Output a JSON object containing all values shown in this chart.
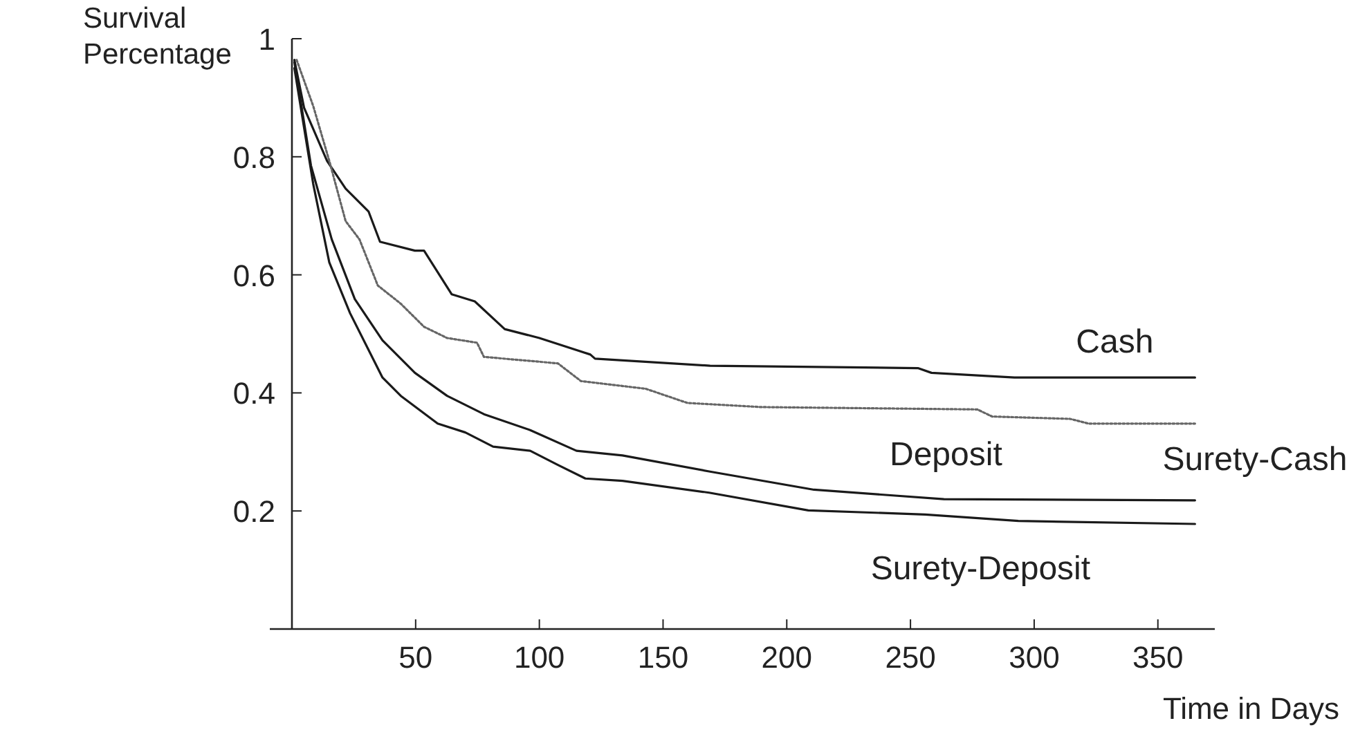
{
  "chart_data": {
    "type": "line",
    "xlabel": "Time in Days",
    "ylabel": "Survival Percentage",
    "xlim": [
      0,
      373
    ],
    "ylim": [
      0,
      1
    ],
    "xticks": [
      50,
      100,
      150,
      200,
      250,
      300,
      350
    ],
    "yticks": [
      0.2,
      0.4,
      0.6,
      0.8,
      1
    ],
    "grid": false,
    "legend": false,
    "series": [
      {
        "name": "Cash",
        "color": "#1a1a1a",
        "line_style": "solid",
        "x": [
          1,
          4.9,
          14.2,
          21.7,
          31,
          35.6,
          49.7,
          53.4,
          64.6,
          73.9,
          86,
          100,
          120.6,
          122.5,
          169,
          253,
          258.5,
          292,
          365
        ],
        "values": [
          0.964,
          0.883,
          0.793,
          0.746,
          0.707,
          0.656,
          0.641,
          0.641,
          0.567,
          0.555,
          0.508,
          0.493,
          0.465,
          0.458,
          0.446,
          0.442,
          0.434,
          0.426,
          0.426
        ]
      },
      {
        "name": "Deposit",
        "color": "#666666",
        "line_style": "dotted",
        "x": [
          1.9,
          8.6,
          15.1,
          21.7,
          27.3,
          34.7,
          44,
          53.4,
          62.7,
          74.8,
          77.6,
          107.5,
          116.8,
          143,
          159.8,
          189.6,
          277,
          283,
          314.5,
          322,
          365
        ],
        "values": [
          0.964,
          0.886,
          0.793,
          0.691,
          0.66,
          0.582,
          0.551,
          0.512,
          0.493,
          0.485,
          0.461,
          0.45,
          0.42,
          0.407,
          0.383,
          0.376,
          0.372,
          0.36,
          0.356,
          0.348,
          0.348
        ]
      },
      {
        "name": "Surety-Cash",
        "color": "#1a1a1a",
        "line_style": "solid",
        "x": [
          1,
          7.7,
          16.1,
          25.4,
          36.6,
          49.7,
          62.7,
          77.6,
          96.3,
          115,
          133.6,
          168.6,
          211,
          263.5,
          365
        ],
        "values": [
          0.96,
          0.785,
          0.66,
          0.559,
          0.489,
          0.434,
          0.395,
          0.364,
          0.337,
          0.302,
          0.294,
          0.267,
          0.236,
          0.22,
          0.218
        ]
      },
      {
        "name": "Surety-Deposit",
        "color": "#1a1a1a",
        "line_style": "solid",
        "x": [
          1,
          8.6,
          15.1,
          23.5,
          36.6,
          44,
          58.9,
          70.1,
          81.3,
          96.3,
          107.5,
          118.6,
          133.6,
          168.6,
          208.7,
          256,
          293.6,
          365
        ],
        "values": [
          0.95,
          0.754,
          0.621,
          0.535,
          0.426,
          0.395,
          0.348,
          0.333,
          0.309,
          0.302,
          0.278,
          0.255,
          0.251,
          0.231,
          0.201,
          0.194,
          0.183,
          0.178
        ]
      }
    ]
  }
}
